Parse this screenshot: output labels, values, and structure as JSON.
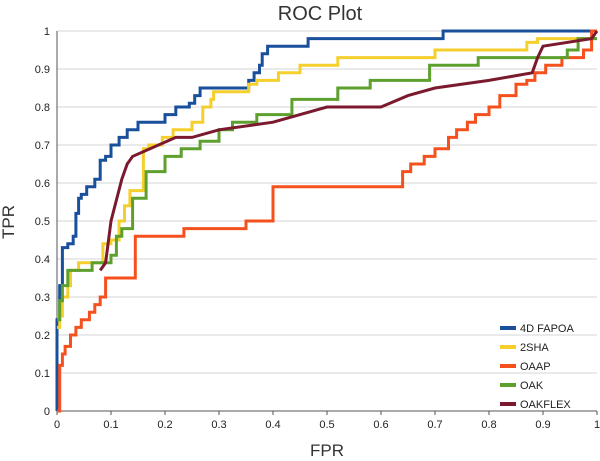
{
  "chart_data": {
    "type": "line",
    "title": "ROC Plot",
    "xlabel": "FPR",
    "ylabel": "TPR",
    "xlim": [
      0,
      1
    ],
    "ylim": [
      0,
      1
    ],
    "x_ticks": [
      "0",
      "0.1",
      "0.2",
      "0.3",
      "0.4",
      "0.5",
      "0.6",
      "0.7",
      "0.8",
      "0.9",
      "1"
    ],
    "y_ticks": [
      "0",
      "0.1",
      "0.2",
      "0.3",
      "0.4",
      "0.5",
      "0.6",
      "0.7",
      "0.8",
      "0.9",
      "1"
    ],
    "grid": "horizontal",
    "legend_position": "bottom-right",
    "series": [
      {
        "name": "4D FAPOA",
        "color": "#1a4f9c",
        "x": [
          0,
          0,
          0.005,
          0.005,
          0.01,
          0.01,
          0.02,
          0.02,
          0.03,
          0.03,
          0.035,
          0.035,
          0.04,
          0.04,
          0.045,
          0.045,
          0.055,
          0.055,
          0.07,
          0.07,
          0.08,
          0.08,
          0.09,
          0.09,
          0.1,
          0.1,
          0.115,
          0.115,
          0.13,
          0.13,
          0.15,
          0.15,
          0.2,
          0.2,
          0.22,
          0.22,
          0.245,
          0.245,
          0.255,
          0.255,
          0.265,
          0.265,
          0.275,
          0.275,
          0.355,
          0.355,
          0.365,
          0.365,
          0.375,
          0.375,
          0.38,
          0.38,
          0.39,
          0.39,
          0.465,
          0.465,
          0.715,
          0.715,
          1.0
        ],
        "y": [
          0,
          0.24,
          0.24,
          0.33,
          0.33,
          0.43,
          0.43,
          0.44,
          0.44,
          0.46,
          0.46,
          0.52,
          0.52,
          0.56,
          0.56,
          0.57,
          0.57,
          0.59,
          0.59,
          0.61,
          0.61,
          0.66,
          0.66,
          0.67,
          0.67,
          0.7,
          0.7,
          0.72,
          0.72,
          0.74,
          0.74,
          0.76,
          0.76,
          0.78,
          0.78,
          0.8,
          0.8,
          0.81,
          0.81,
          0.83,
          0.83,
          0.85,
          0.85,
          0.85,
          0.85,
          0.87,
          0.87,
          0.89,
          0.89,
          0.91,
          0.91,
          0.94,
          0.94,
          0.96,
          0.96,
          0.98,
          0.98,
          1.0,
          1.0
        ]
      },
      {
        "name": "2SHA",
        "color": "#f5cf2c",
        "x": [
          0,
          0.005,
          0.005,
          0.01,
          0.01,
          0.02,
          0.02,
          0.025,
          0.025,
          0.04,
          0.04,
          0.085,
          0.085,
          0.1,
          0.1,
          0.115,
          0.115,
          0.125,
          0.125,
          0.135,
          0.135,
          0.16,
          0.16,
          0.17,
          0.17,
          0.195,
          0.195,
          0.215,
          0.215,
          0.25,
          0.25,
          0.27,
          0.27,
          0.285,
          0.285,
          0.29,
          0.29,
          0.355,
          0.355,
          0.37,
          0.37,
          0.41,
          0.41,
          0.45,
          0.45,
          0.52,
          0.52,
          0.7,
          0.7,
          0.87,
          0.87,
          0.89,
          0.89,
          1.0
        ],
        "y": [
          0.22,
          0.22,
          0.25,
          0.25,
          0.3,
          0.3,
          0.33,
          0.33,
          0.37,
          0.37,
          0.39,
          0.39,
          0.44,
          0.44,
          0.45,
          0.45,
          0.5,
          0.5,
          0.54,
          0.54,
          0.58,
          0.58,
          0.69,
          0.69,
          0.7,
          0.7,
          0.72,
          0.72,
          0.74,
          0.74,
          0.76,
          0.76,
          0.8,
          0.8,
          0.82,
          0.82,
          0.84,
          0.84,
          0.86,
          0.86,
          0.87,
          0.87,
          0.89,
          0.89,
          0.91,
          0.91,
          0.93,
          0.93,
          0.95,
          0.95,
          0.97,
          0.97,
          0.98,
          0.98
        ]
      },
      {
        "name": "OAAP",
        "color": "#f4511e",
        "x": [
          0,
          0.005,
          0.005,
          0.01,
          0.01,
          0.015,
          0.015,
          0.025,
          0.025,
          0.035,
          0.035,
          0.045,
          0.045,
          0.06,
          0.06,
          0.07,
          0.07,
          0.08,
          0.08,
          0.09,
          0.09,
          0.145,
          0.145,
          0.235,
          0.235,
          0.35,
          0.35,
          0.4,
          0.4,
          0.64,
          0.64,
          0.655,
          0.655,
          0.68,
          0.68,
          0.7,
          0.7,
          0.725,
          0.725,
          0.74,
          0.74,
          0.76,
          0.76,
          0.775,
          0.775,
          0.8,
          0.8,
          0.82,
          0.82,
          0.85,
          0.85,
          0.87,
          0.87,
          0.885,
          0.885,
          0.905,
          0.905,
          0.935,
          0.935,
          0.975,
          0.975,
          0.99,
          0.99,
          1.0
        ],
        "y": [
          0,
          0,
          0.12,
          0.12,
          0.15,
          0.15,
          0.17,
          0.17,
          0.2,
          0.2,
          0.22,
          0.22,
          0.24,
          0.24,
          0.26,
          0.26,
          0.28,
          0.28,
          0.3,
          0.3,
          0.35,
          0.35,
          0.46,
          0.46,
          0.48,
          0.48,
          0.5,
          0.5,
          0.59,
          0.59,
          0.63,
          0.63,
          0.65,
          0.65,
          0.67,
          0.67,
          0.69,
          0.69,
          0.72,
          0.72,
          0.74,
          0.74,
          0.76,
          0.76,
          0.78,
          0.78,
          0.8,
          0.8,
          0.83,
          0.83,
          0.86,
          0.86,
          0.87,
          0.87,
          0.89,
          0.89,
          0.91,
          0.91,
          0.93,
          0.93,
          0.95,
          0.95,
          1.0,
          1.0
        ]
      },
      {
        "name": "OAK",
        "color": "#5da02e",
        "x": [
          0,
          0.005,
          0.005,
          0.01,
          0.01,
          0.02,
          0.02,
          0.065,
          0.065,
          0.1,
          0.1,
          0.11,
          0.11,
          0.12,
          0.12,
          0.14,
          0.14,
          0.165,
          0.165,
          0.2,
          0.2,
          0.23,
          0.23,
          0.265,
          0.265,
          0.3,
          0.3,
          0.325,
          0.325,
          0.37,
          0.37,
          0.435,
          0.435,
          0.52,
          0.52,
          0.58,
          0.58,
          0.69,
          0.69,
          0.78,
          0.78,
          0.945,
          0.945,
          0.965,
          0.965,
          1.0
        ],
        "y": [
          0.24,
          0.24,
          0.29,
          0.29,
          0.33,
          0.33,
          0.37,
          0.37,
          0.39,
          0.39,
          0.41,
          0.41,
          0.46,
          0.46,
          0.48,
          0.48,
          0.56,
          0.56,
          0.63,
          0.63,
          0.67,
          0.67,
          0.69,
          0.69,
          0.71,
          0.71,
          0.74,
          0.74,
          0.76,
          0.76,
          0.78,
          0.78,
          0.82,
          0.82,
          0.85,
          0.85,
          0.87,
          0.87,
          0.91,
          0.91,
          0.93,
          0.93,
          0.95,
          0.95,
          0.98,
          0.98
        ]
      },
      {
        "name": "OAKFLEX",
        "color": "#7b1a2f",
        "x": [
          0.08,
          0.08,
          0.09,
          0.09,
          0.1,
          0.1,
          0.12,
          0.12,
          0.13,
          0.13,
          0.14,
          0.14,
          0.22,
          0.22,
          0.25,
          0.25,
          0.3,
          0.3,
          0.4,
          0.4,
          0.5,
          0.5,
          0.6,
          0.6,
          0.65,
          0.65,
          0.7,
          0.7,
          0.8,
          0.8,
          0.88,
          0.88,
          0.89,
          0.89,
          0.9,
          0.9,
          0.99,
          0.99,
          1.0
        ],
        "y": [
          0.37,
          0.37,
          0.39,
          0.39,
          0.5,
          0.5,
          0.61,
          0.61,
          0.65,
          0.65,
          0.67,
          0.67,
          0.72,
          0.72,
          0.72,
          0.72,
          0.74,
          0.74,
          0.76,
          0.76,
          0.8,
          0.8,
          0.8,
          0.8,
          0.83,
          0.83,
          0.85,
          0.85,
          0.87,
          0.87,
          0.89,
          0.89,
          0.93,
          0.93,
          0.96,
          0.96,
          0.98,
          0.98,
          1.0
        ]
      }
    ]
  }
}
